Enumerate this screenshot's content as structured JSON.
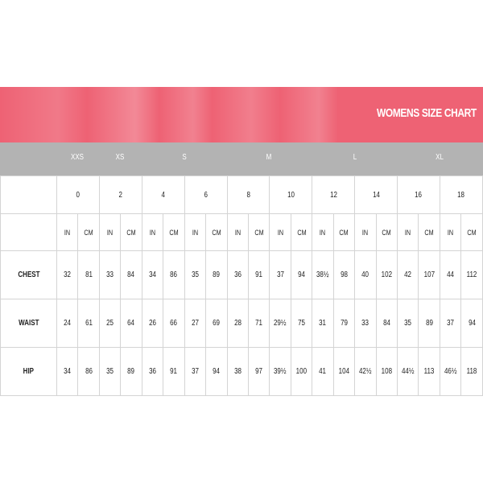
{
  "title": "WOMENS SIZE CHART",
  "colors": {
    "banner": "#ee6274",
    "size_bar": "#b3b3b3"
  },
  "letter_sizes": [
    "XXS",
    "XS",
    "S",
    "M",
    "L",
    "XL"
  ],
  "numeric_sizes": [
    "0",
    "2",
    "4",
    "6",
    "8",
    "10",
    "12",
    "14",
    "16",
    "18"
  ],
  "units": [
    "IN",
    "CM"
  ],
  "rows": [
    {
      "label": "CHEST",
      "values": [
        "32",
        "81",
        "33",
        "84",
        "34",
        "86",
        "35",
        "89",
        "36",
        "91",
        "37",
        "94",
        "38½",
        "98",
        "40",
        "102",
        "42",
        "107",
        "44",
        "112"
      ]
    },
    {
      "label": "WAIST",
      "values": [
        "24",
        "61",
        "25",
        "64",
        "26",
        "66",
        "27",
        "69",
        "28",
        "71",
        "29½",
        "75",
        "31",
        "79",
        "33",
        "84",
        "35",
        "89",
        "37",
        "94"
      ]
    },
    {
      "label": "HIP",
      "values": [
        "34",
        "86",
        "35",
        "89",
        "36",
        "91",
        "37",
        "94",
        "38",
        "97",
        "39½",
        "100",
        "41",
        "104",
        "42½",
        "108",
        "44½",
        "113",
        "46½",
        "118"
      ]
    }
  ]
}
